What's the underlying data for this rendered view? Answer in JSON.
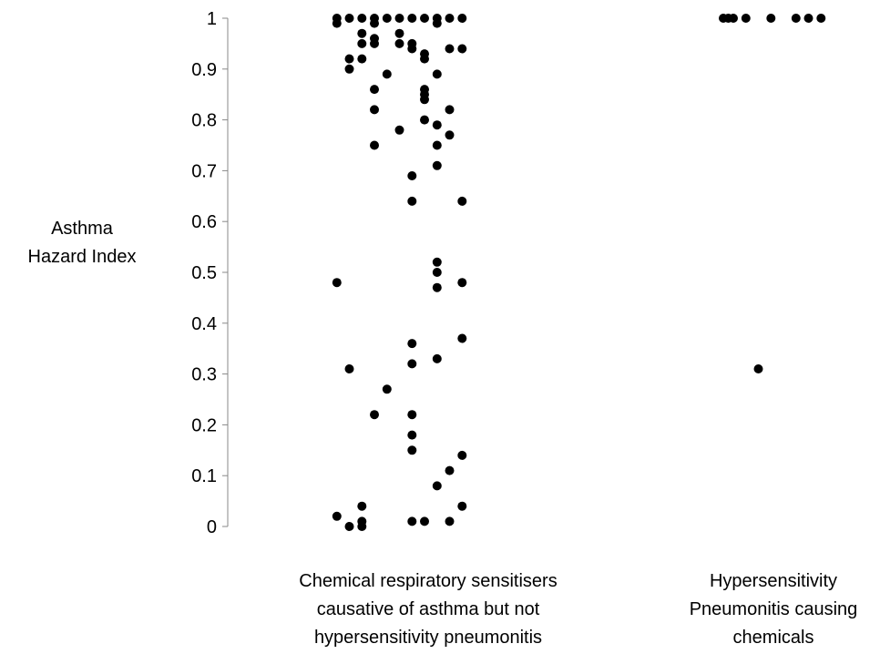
{
  "chart_data": {
    "type": "scatter",
    "title": "",
    "ylabel": [
      "Asthma",
      "Hazard Index"
    ],
    "ylim": [
      0,
      1
    ],
    "yticks": [
      "0",
      "0.1",
      "0.2",
      "0.3",
      "0.4",
      "0.5",
      "0.6",
      "0.7",
      "0.8",
      "0.9",
      "1"
    ],
    "grid": false,
    "legend": "none",
    "marker_color": "#000000",
    "categories": [
      {
        "name": "sensitisers",
        "label_lines": [
          "Chemical respiratory sensitisers",
          "causative of asthma but not",
          "hypersensitivity pneumonitis"
        ],
        "points": [
          {
            "offset": -31,
            "y": 1.0
          },
          {
            "offset": -31,
            "y": 0.99
          },
          {
            "offset": -31,
            "y": 0.48
          },
          {
            "offset": -31,
            "y": 0.02
          },
          {
            "offset": -26,
            "y": 1.0
          },
          {
            "offset": -26,
            "y": 0.92
          },
          {
            "offset": -26,
            "y": 0.9
          },
          {
            "offset": -26,
            "y": 0.31
          },
          {
            "offset": -26,
            "y": 0.0
          },
          {
            "offset": -21,
            "y": 1.0
          },
          {
            "offset": -21,
            "y": 0.97
          },
          {
            "offset": -21,
            "y": 0.95
          },
          {
            "offset": -21,
            "y": 0.92
          },
          {
            "offset": -21,
            "y": 0.04
          },
          {
            "offset": -21,
            "y": 0.01
          },
          {
            "offset": -21,
            "y": 0.0
          },
          {
            "offset": -16,
            "y": 1.0
          },
          {
            "offset": -16,
            "y": 0.99
          },
          {
            "offset": -16,
            "y": 0.96
          },
          {
            "offset": -16,
            "y": 0.95
          },
          {
            "offset": -16,
            "y": 0.86
          },
          {
            "offset": -16,
            "y": 0.82
          },
          {
            "offset": -16,
            "y": 0.75
          },
          {
            "offset": -16,
            "y": 0.22
          },
          {
            "offset": -11,
            "y": 1.0
          },
          {
            "offset": -11,
            "y": 0.89
          },
          {
            "offset": -11,
            "y": 0.27
          },
          {
            "offset": -6,
            "y": 1.0
          },
          {
            "offset": -6,
            "y": 0.97
          },
          {
            "offset": -6,
            "y": 0.95
          },
          {
            "offset": -6,
            "y": 0.78
          },
          {
            "offset": -1,
            "y": 1.0
          },
          {
            "offset": -1,
            "y": 0.95
          },
          {
            "offset": -1,
            "y": 0.94
          },
          {
            "offset": -1,
            "y": 0.69
          },
          {
            "offset": -1,
            "y": 0.64
          },
          {
            "offset": -1,
            "y": 0.36
          },
          {
            "offset": -1,
            "y": 0.32
          },
          {
            "offset": -1,
            "y": 0.22
          },
          {
            "offset": -1,
            "y": 0.18
          },
          {
            "offset": -1,
            "y": 0.15
          },
          {
            "offset": -1,
            "y": 0.01
          },
          {
            "offset": 4,
            "y": 1.0
          },
          {
            "offset": 4,
            "y": 0.93
          },
          {
            "offset": 4,
            "y": 0.92
          },
          {
            "offset": 4,
            "y": 0.86
          },
          {
            "offset": 4,
            "y": 0.85
          },
          {
            "offset": 4,
            "y": 0.84
          },
          {
            "offset": 4,
            "y": 0.8
          },
          {
            "offset": 4,
            "y": 0.01
          },
          {
            "offset": 9,
            "y": 1.0
          },
          {
            "offset": 9,
            "y": 0.99
          },
          {
            "offset": 9,
            "y": 0.89
          },
          {
            "offset": 9,
            "y": 0.79
          },
          {
            "offset": 9,
            "y": 0.75
          },
          {
            "offset": 9,
            "y": 0.71
          },
          {
            "offset": 9,
            "y": 0.52
          },
          {
            "offset": 9,
            "y": 0.5
          },
          {
            "offset": 9,
            "y": 0.47
          },
          {
            "offset": 9,
            "y": 0.33
          },
          {
            "offset": 9,
            "y": 0.08
          },
          {
            "offset": 14,
            "y": 1.0
          },
          {
            "offset": 14,
            "y": 0.94
          },
          {
            "offset": 14,
            "y": 0.82
          },
          {
            "offset": 14,
            "y": 0.77
          },
          {
            "offset": 14,
            "y": 0.11
          },
          {
            "offset": 14,
            "y": 0.01
          },
          {
            "offset": 19,
            "y": 1.0
          },
          {
            "offset": 19,
            "y": 0.94
          },
          {
            "offset": 19,
            "y": 0.64
          },
          {
            "offset": 19,
            "y": 0.48
          },
          {
            "offset": 19,
            "y": 0.37
          },
          {
            "offset": 19,
            "y": 0.14
          },
          {
            "offset": 19,
            "y": 0.04
          }
        ]
      },
      {
        "name": "hp",
        "label_lines": [
          "Hypersensitivity",
          "Pneumonitis causing",
          "chemicals"
        ],
        "points": [
          {
            "offset": -20,
            "y": 1.0
          },
          {
            "offset": -18,
            "y": 1.0
          },
          {
            "offset": -16,
            "y": 1.0
          },
          {
            "offset": -11,
            "y": 1.0
          },
          {
            "offset": -1,
            "y": 1.0
          },
          {
            "offset": 9,
            "y": 1.0
          },
          {
            "offset": 14,
            "y": 1.0
          },
          {
            "offset": 19,
            "y": 1.0
          },
          {
            "offset": -6,
            "y": 0.31
          }
        ]
      }
    ]
  }
}
